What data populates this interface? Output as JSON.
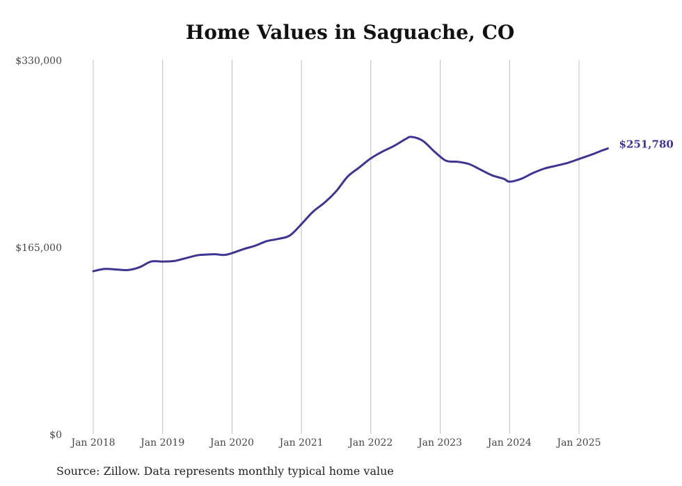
{
  "title": "Home Values in Saguache, CO",
  "source": "Source: Zillow. Data represents monthly typical home value",
  "colors": {
    "line": "#3d3591",
    "grid": "#bdbdbd",
    "text": "#444444"
  },
  "chart_data": {
    "type": "line",
    "title": "Home Values in Saguache, CO",
    "xlabel": "",
    "ylabel": "",
    "ylim": [
      0,
      330000
    ],
    "yticks": [
      0,
      165000,
      330000
    ],
    "ytick_labels": [
      "$0",
      "$165,000",
      "$330,000"
    ],
    "xlim": [
      "2018-01",
      "2025-06"
    ],
    "xticks": [
      "2018-01",
      "2019-01",
      "2020-01",
      "2021-01",
      "2022-01",
      "2023-01",
      "2024-01",
      "2025-01"
    ],
    "xtick_labels": [
      "Jan 2018",
      "Jan 2019",
      "Jan 2020",
      "Jan 2021",
      "Jan 2022",
      "Jan 2023",
      "Jan 2024",
      "Jan 2025"
    ],
    "grid": "vertical",
    "end_label": "$251,780",
    "series": [
      {
        "x": [
          "2018-01",
          "2018-03",
          "2018-05",
          "2018-07",
          "2018-09",
          "2018-11",
          "2019-01",
          "2019-03",
          "2019-05",
          "2019-07",
          "2019-08",
          "2019-10",
          "2019-12",
          "2020-03",
          "2020-05",
          "2020-07",
          "2020-09",
          "2020-11",
          "2021-01",
          "2021-03",
          "2021-05",
          "2021-07",
          "2021-09",
          "2021-11",
          "2022-01",
          "2022-03",
          "2022-05",
          "2022-07",
          "2022-08",
          "2022-10",
          "2022-12",
          "2023-02",
          "2023-04",
          "2023-06",
          "2023-08",
          "2023-10",
          "2023-12",
          "2024-01",
          "2024-03",
          "2024-05",
          "2024-07",
          "2024-09",
          "2024-11",
          "2025-01",
          "2025-03",
          "2025-05",
          "2025-06"
        ],
        "values": [
          143500,
          145500,
          145000,
          144500,
          147000,
          152000,
          152000,
          152500,
          155000,
          157500,
          158000,
          158500,
          158000,
          163000,
          166000,
          170000,
          172000,
          175000,
          185000,
          196000,
          204000,
          214000,
          227000,
          235000,
          243000,
          249000,
          254000,
          260000,
          262000,
          258500,
          249000,
          241000,
          240000,
          238000,
          233000,
          228000,
          225000,
          222500,
          225000,
          230000,
          234000,
          236500,
          239000,
          242500,
          246000,
          250000,
          251780
        ]
      }
    ]
  }
}
